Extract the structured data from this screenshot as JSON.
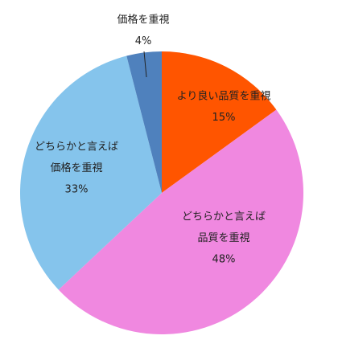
{
  "chart_data": {
    "type": "pie",
    "categories": [
      [
        "より良い品質を重視"
      ],
      [
        "どちらかと言えば",
        "品質を重視"
      ],
      [
        "どちらかと言えば",
        "価格を重視"
      ],
      [
        "価格を重視"
      ]
    ],
    "values": [
      15,
      48,
      33,
      4
    ],
    "value_labels": [
      "15%",
      "48%",
      "33%",
      "4%"
    ],
    "colors": [
      "#ff5500",
      "#f088e0",
      "#85c4ec",
      "#4f81bd"
    ]
  }
}
